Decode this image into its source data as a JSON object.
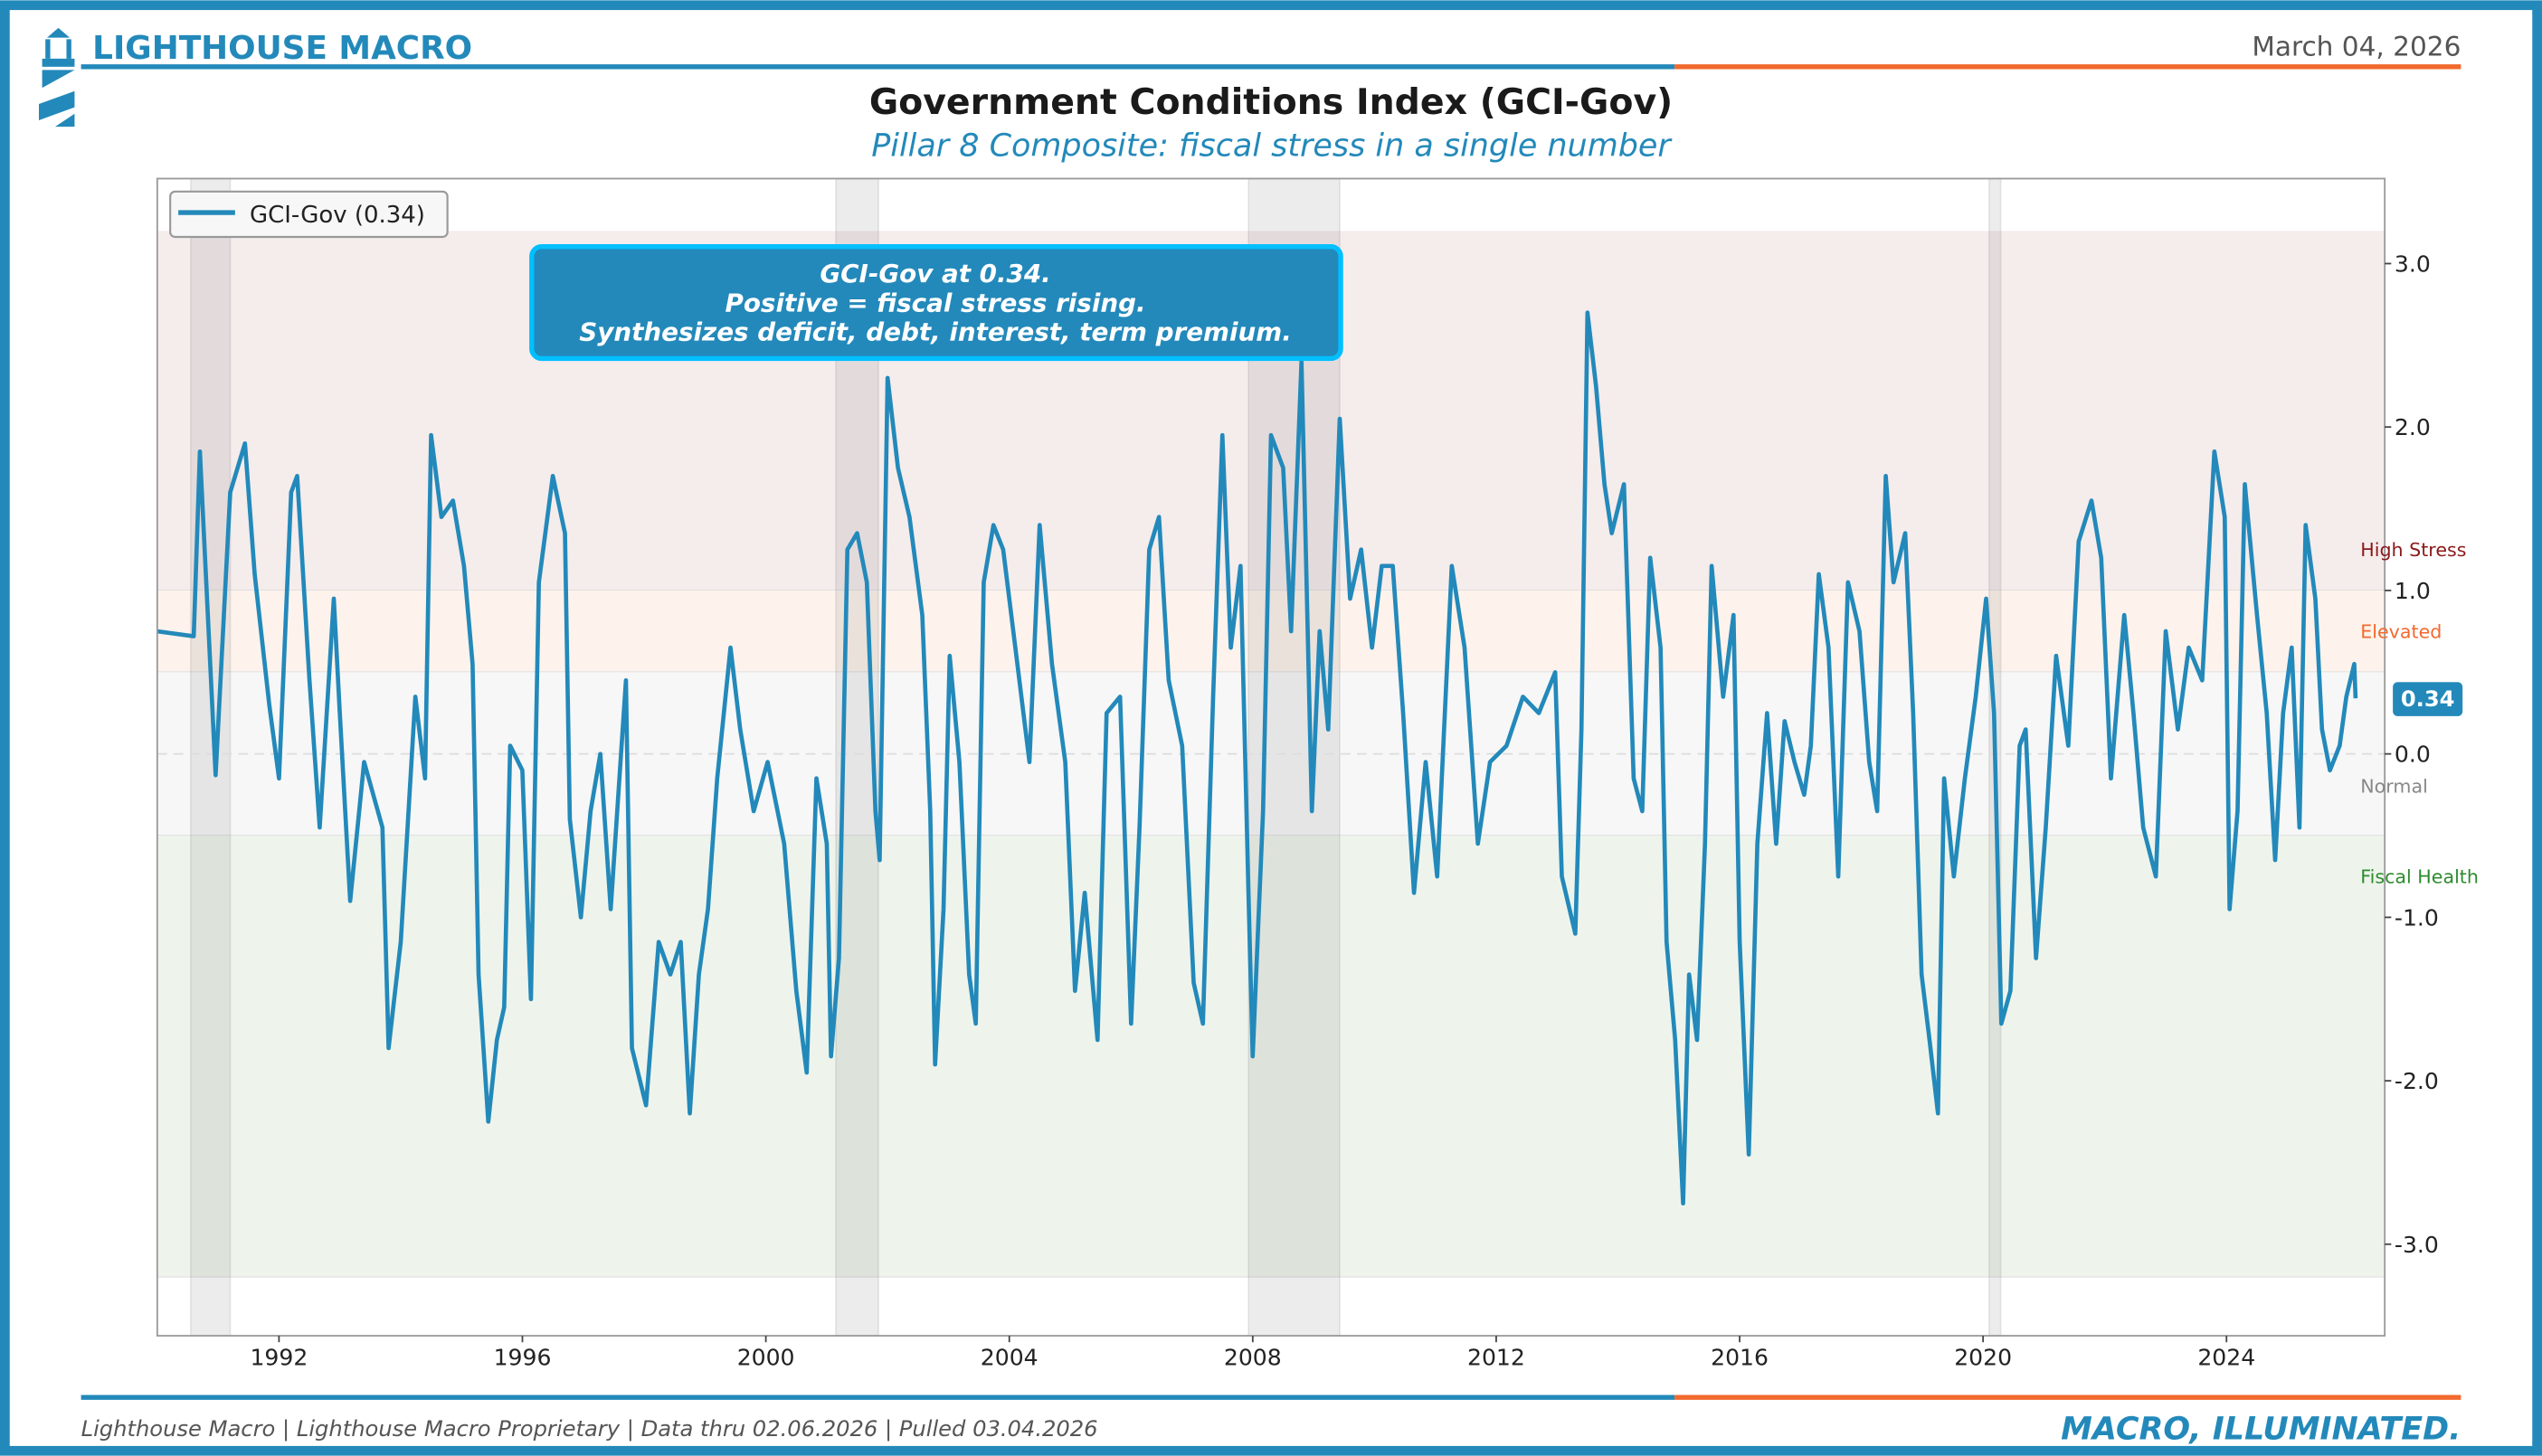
{
  "header": {
    "brand": "LIGHTHOUSE MACRO",
    "date": "March 04, 2026",
    "title": "Government Conditions Index (GCI-Gov)",
    "subtitle": "Pillar 8 Composite: fiscal stress in a single number"
  },
  "footer": {
    "source": "Lighthouse Macro | Lighthouse Macro Proprietary | Data thru 02.06.2026 | Pulled 03.04.2026",
    "tagline": "MACRO, ILLUMINATED."
  },
  "colors": {
    "brand_blue": "#2389BA",
    "accent_orange": "#F26A2E",
    "high_stress": "#8B1A1A",
    "elevated": "#F26A2E",
    "normal": "#888888",
    "fiscal_health": "#2E8B2E"
  },
  "chart_data": {
    "type": "line",
    "title": "Government Conditions Index (GCI-Gov)",
    "subtitle": "Pillar 8 Composite: fiscal stress in a single number",
    "xlabel": "",
    "ylabel": "",
    "xlim": [
      1990,
      2026.6
    ],
    "ylim": [
      -3.56,
      3.52
    ],
    "x_ticks": [
      1992,
      1996,
      2000,
      2004,
      2008,
      2012,
      2016,
      2020,
      2024
    ],
    "y_ticks": [
      3.0,
      2.0,
      1.0,
      0.0,
      -1.0,
      -2.0,
      -3.0
    ],
    "y_axis_side": "right",
    "legend": {
      "placement": "top-left",
      "entries": [
        "GCI-Gov (0.34)"
      ]
    },
    "annotation": {
      "lines": [
        "GCI-Gov at 0.34.",
        "Positive = fiscal stress rising.",
        "Synthesizes deficit, debt, interest, term premium."
      ],
      "placement": "top-center"
    },
    "current_value": {
      "label": "0.34",
      "value": 0.34
    },
    "zones": [
      {
        "name": "High Stress",
        "from": 1.0,
        "to": 3.2,
        "fill": "#F5ECEC",
        "label_y": 1.25,
        "color": "#8B1A1A"
      },
      {
        "name": "Elevated",
        "from": 0.5,
        "to": 1.0,
        "fill": "#FDF3EC",
        "label_y": 0.75,
        "color": "#F26A2E"
      },
      {
        "name": "Normal",
        "from": -0.5,
        "to": 0.5,
        "fill": "#F7F7F7",
        "label_y": 0.0,
        "color": "#888888"
      },
      {
        "name": "Fiscal Health",
        "from": -3.2,
        "to": -0.5,
        "fill": "#EEF4EC",
        "label_y": -0.75,
        "color": "#2E8B2E"
      }
    ],
    "recessions": [
      [
        1990.55,
        1991.2
      ],
      [
        2001.15,
        2001.85
      ],
      [
        2007.93,
        2009.43
      ],
      [
        2020.1,
        2020.29
      ]
    ],
    "series": [
      {
        "name": "GCI-Gov",
        "color": "#2389BA",
        "points": [
          [
            1990.0,
            0.75
          ],
          [
            1990.6,
            0.72
          ],
          [
            1990.7,
            1.85
          ],
          [
            1990.96,
            -0.13
          ],
          [
            1991.2,
            1.6
          ],
          [
            1991.44,
            1.9
          ],
          [
            1991.6,
            1.1
          ],
          [
            1991.84,
            0.3
          ],
          [
            1992.0,
            -0.15
          ],
          [
            1992.2,
            1.6
          ],
          [
            1992.3,
            1.7
          ],
          [
            1992.5,
            0.45
          ],
          [
            1992.67,
            -0.45
          ],
          [
            1992.9,
            0.95
          ],
          [
            1993.0,
            0.25
          ],
          [
            1993.17,
            -0.9
          ],
          [
            1993.4,
            -0.05
          ],
          [
            1993.7,
            -0.45
          ],
          [
            1993.8,
            -1.8
          ],
          [
            1994.0,
            -1.15
          ],
          [
            1994.24,
            0.35
          ],
          [
            1994.4,
            -0.15
          ],
          [
            1994.5,
            1.95
          ],
          [
            1994.67,
            1.45
          ],
          [
            1994.86,
            1.55
          ],
          [
            1995.04,
            1.15
          ],
          [
            1995.18,
            0.55
          ],
          [
            1995.28,
            -1.35
          ],
          [
            1995.44,
            -2.25
          ],
          [
            1995.58,
            -1.75
          ],
          [
            1995.7,
            -1.55
          ],
          [
            1995.8,
            0.05
          ],
          [
            1996.0,
            -0.1
          ],
          [
            1996.14,
            -1.5
          ],
          [
            1996.27,
            1.05
          ],
          [
            1996.5,
            1.7
          ],
          [
            1996.7,
            1.35
          ],
          [
            1996.78,
            -0.4
          ],
          [
            1996.96,
            -1.0
          ],
          [
            1997.12,
            -0.35
          ],
          [
            1997.28,
            0.0
          ],
          [
            1997.45,
            -0.95
          ],
          [
            1997.7,
            0.45
          ],
          [
            1997.8,
            -1.8
          ],
          [
            1998.03,
            -2.15
          ],
          [
            1998.24,
            -1.15
          ],
          [
            1998.43,
            -1.35
          ],
          [
            1998.6,
            -1.15
          ],
          [
            1998.75,
            -2.2
          ],
          [
            1998.9,
            -1.35
          ],
          [
            1999.05,
            -0.95
          ],
          [
            1999.2,
            -0.15
          ],
          [
            1999.42,
            0.65
          ],
          [
            1999.58,
            0.15
          ],
          [
            1999.8,
            -0.35
          ],
          [
            2000.03,
            -0.05
          ],
          [
            2000.3,
            -0.55
          ],
          [
            2000.5,
            -1.45
          ],
          [
            2000.67,
            -1.95
          ],
          [
            2000.83,
            -0.15
          ],
          [
            2001.0,
            -0.55
          ],
          [
            2001.07,
            -1.85
          ],
          [
            2001.2,
            -1.25
          ],
          [
            2001.34,
            1.25
          ],
          [
            2001.5,
            1.35
          ],
          [
            2001.66,
            1.05
          ],
          [
            2001.8,
            -0.35
          ],
          [
            2001.87,
            -0.65
          ],
          [
            2002.0,
            2.3
          ],
          [
            2002.17,
            1.75
          ],
          [
            2002.36,
            1.45
          ],
          [
            2002.57,
            0.85
          ],
          [
            2002.7,
            -0.35
          ],
          [
            2002.78,
            -1.9
          ],
          [
            2002.92,
            -0.95
          ],
          [
            2003.02,
            0.6
          ],
          [
            2003.18,
            -0.05
          ],
          [
            2003.34,
            -1.35
          ],
          [
            2003.45,
            -1.65
          ],
          [
            2003.58,
            1.05
          ],
          [
            2003.74,
            1.4
          ],
          [
            2003.9,
            1.25
          ],
          [
            2004.1,
            0.65
          ],
          [
            2004.33,
            -0.05
          ],
          [
            2004.5,
            1.4
          ],
          [
            2004.7,
            0.55
          ],
          [
            2004.92,
            -0.05
          ],
          [
            2005.08,
            -1.45
          ],
          [
            2005.24,
            -0.85
          ],
          [
            2005.45,
            -1.75
          ],
          [
            2005.6,
            0.25
          ],
          [
            2005.82,
            0.35
          ],
          [
            2006.0,
            -1.65
          ],
          [
            2006.14,
            -0.45
          ],
          [
            2006.3,
            1.25
          ],
          [
            2006.46,
            1.45
          ],
          [
            2006.62,
            0.45
          ],
          [
            2006.84,
            0.05
          ],
          [
            2007.03,
            -1.4
          ],
          [
            2007.18,
            -1.65
          ],
          [
            2007.35,
            0.35
          ],
          [
            2007.5,
            1.95
          ],
          [
            2007.64,
            0.65
          ],
          [
            2007.8,
            1.15
          ],
          [
            2007.93,
            -0.85
          ],
          [
            2008.0,
            -1.85
          ],
          [
            2008.17,
            -0.35
          ],
          [
            2008.3,
            1.95
          ],
          [
            2008.5,
            1.75
          ],
          [
            2008.63,
            0.75
          ],
          [
            2008.8,
            2.4
          ],
          [
            2008.97,
            -0.35
          ],
          [
            2009.1,
            0.75
          ],
          [
            2009.24,
            0.15
          ],
          [
            2009.43,
            2.05
          ],
          [
            2009.6,
            0.95
          ],
          [
            2009.78,
            1.25
          ],
          [
            2009.96,
            0.65
          ],
          [
            2010.12,
            1.15
          ],
          [
            2010.3,
            1.15
          ],
          [
            2010.47,
            0.25
          ],
          [
            2010.65,
            -0.85
          ],
          [
            2010.84,
            -0.05
          ],
          [
            2011.03,
            -0.75
          ],
          [
            2011.27,
            1.15
          ],
          [
            2011.48,
            0.65
          ],
          [
            2011.7,
            -0.55
          ],
          [
            2011.9,
            -0.05
          ],
          [
            2012.17,
            0.05
          ],
          [
            2012.44,
            0.35
          ],
          [
            2012.7,
            0.25
          ],
          [
            2012.97,
            0.5
          ],
          [
            2013.08,
            -0.75
          ],
          [
            2013.3,
            -1.1
          ],
          [
            2013.4,
            0.15
          ],
          [
            2013.5,
            2.7
          ],
          [
            2013.64,
            2.25
          ],
          [
            2013.78,
            1.65
          ],
          [
            2013.9,
            1.35
          ],
          [
            2014.1,
            1.65
          ],
          [
            2014.26,
            -0.15
          ],
          [
            2014.4,
            -0.35
          ],
          [
            2014.53,
            1.2
          ],
          [
            2014.7,
            0.65
          ],
          [
            2014.8,
            -1.15
          ],
          [
            2014.94,
            -1.75
          ],
          [
            2015.07,
            -2.75
          ],
          [
            2015.17,
            -1.35
          ],
          [
            2015.3,
            -1.75
          ],
          [
            2015.43,
            -0.55
          ],
          [
            2015.54,
            1.15
          ],
          [
            2015.73,
            0.35
          ],
          [
            2015.9,
            0.85
          ],
          [
            2016.0,
            -1.15
          ],
          [
            2016.15,
            -2.45
          ],
          [
            2016.29,
            -0.55
          ],
          [
            2016.45,
            0.25
          ],
          [
            2016.6,
            -0.55
          ],
          [
            2016.74,
            0.2
          ],
          [
            2016.9,
            -0.05
          ],
          [
            2017.06,
            -0.25
          ],
          [
            2017.17,
            0.05
          ],
          [
            2017.3,
            1.1
          ],
          [
            2017.46,
            0.65
          ],
          [
            2017.62,
            -0.75
          ],
          [
            2017.78,
            1.05
          ],
          [
            2017.97,
            0.75
          ],
          [
            2018.13,
            -0.05
          ],
          [
            2018.26,
            -0.35
          ],
          [
            2018.4,
            1.7
          ],
          [
            2018.53,
            1.05
          ],
          [
            2018.72,
            1.35
          ],
          [
            2018.85,
            0.25
          ],
          [
            2018.99,
            -1.35
          ],
          [
            2019.12,
            -1.75
          ],
          [
            2019.26,
            -2.2
          ],
          [
            2019.36,
            -0.15
          ],
          [
            2019.52,
            -0.75
          ],
          [
            2019.7,
            -0.15
          ],
          [
            2019.88,
            0.35
          ],
          [
            2020.05,
            0.95
          ],
          [
            2020.18,
            0.25
          ],
          [
            2020.3,
            -1.65
          ],
          [
            2020.45,
            -1.45
          ],
          [
            2020.6,
            0.05
          ],
          [
            2020.7,
            0.15
          ],
          [
            2020.87,
            -1.25
          ],
          [
            2021.03,
            -0.45
          ],
          [
            2021.2,
            0.6
          ],
          [
            2021.4,
            0.05
          ],
          [
            2021.57,
            1.3
          ],
          [
            2021.78,
            1.55
          ],
          [
            2021.94,
            1.2
          ],
          [
            2022.1,
            -0.15
          ],
          [
            2022.32,
            0.85
          ],
          [
            2022.47,
            0.25
          ],
          [
            2022.63,
            -0.45
          ],
          [
            2022.84,
            -0.75
          ],
          [
            2023.0,
            0.75
          ],
          [
            2023.2,
            0.15
          ],
          [
            2023.38,
            0.65
          ],
          [
            2023.6,
            0.45
          ],
          [
            2023.8,
            1.85
          ],
          [
            2023.97,
            1.45
          ],
          [
            2024.05,
            -0.95
          ],
          [
            2024.18,
            -0.35
          ],
          [
            2024.3,
            1.65
          ],
          [
            2024.5,
            0.85
          ],
          [
            2024.66,
            0.25
          ],
          [
            2024.8,
            -0.65
          ],
          [
            2024.93,
            0.25
          ],
          [
            2025.07,
            0.65
          ],
          [
            2025.2,
            -0.45
          ],
          [
            2025.3,
            1.4
          ],
          [
            2025.46,
            0.95
          ],
          [
            2025.57,
            0.15
          ],
          [
            2025.7,
            -0.1
          ],
          [
            2025.86,
            0.05
          ],
          [
            2025.97,
            0.35
          ],
          [
            2026.1,
            0.55
          ],
          [
            2026.12,
            0.34
          ]
        ]
      }
    ]
  }
}
